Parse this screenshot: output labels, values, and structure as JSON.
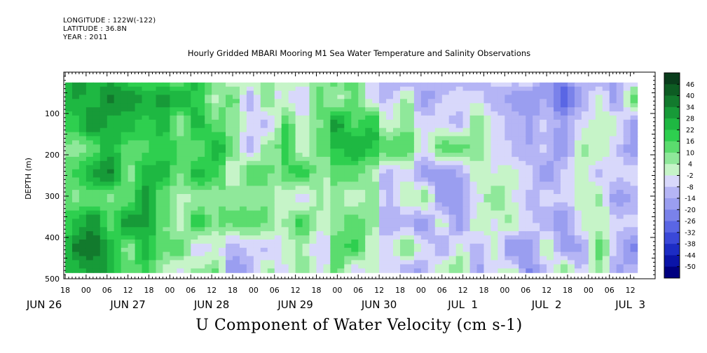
{
  "header": {
    "longitude": "LONGITUDE : 122W(-122)",
    "latitude": "LATITUDE : 36.8N",
    "year": "YEAR : 2011"
  },
  "chart_data": {
    "type": "heatmap",
    "title": "Hourly Gridded MBARI Mooring M1 Sea Water Temperature and Salinity Observations",
    "xlabel": "U Component of Water Velocity (cm s-1)",
    "ylabel": "DEPTH (m)",
    "ylim": [
      500,
      0
    ],
    "y_ticks": [
      100,
      200,
      300,
      400,
      500
    ],
    "x_hour_ticks": [
      "18",
      "00",
      "06",
      "12",
      "18",
      "00",
      "06",
      "12",
      "18",
      "00",
      "06",
      "12",
      "18",
      "00",
      "06",
      "12",
      "18",
      "00",
      "06",
      "12",
      "18",
      "00",
      "06",
      "12",
      "18",
      "00",
      "06",
      "12"
    ],
    "x_day_labels": [
      "JUN 26",
      "JUN 27",
      "JUN 28",
      "JUN 29",
      "JUN 30",
      "JUL  1",
      "JUL  2",
      "JUL  3"
    ],
    "colorbar_levels": [
      "46",
      "40",
      "34",
      "28",
      "22",
      "16",
      "10",
      "4",
      "-2",
      "-8",
      "-14",
      "-20",
      "-26",
      "-32",
      "-38",
      "-44",
      "-50"
    ],
    "colorbar_colors": [
      "#0a3d1c",
      "#0d5c23",
      "#127a2d",
      "#179a38",
      "#1eb842",
      "#2ecf4f",
      "#5bdc6e",
      "#8fe89a",
      "#c6f4c8",
      "#d8d8fb",
      "#b5b5f5",
      "#9a9ef0",
      "#7a82ea",
      "#5a66e4",
      "#3a48d8",
      "#1c2cc4",
      "#0a14a8",
      "#000080"
    ],
    "data_extent": {
      "start": "JUN 26 18:00",
      "end": "JUL 3 13:00",
      "depth_min": 25,
      "depth_max": 485
    }
  }
}
